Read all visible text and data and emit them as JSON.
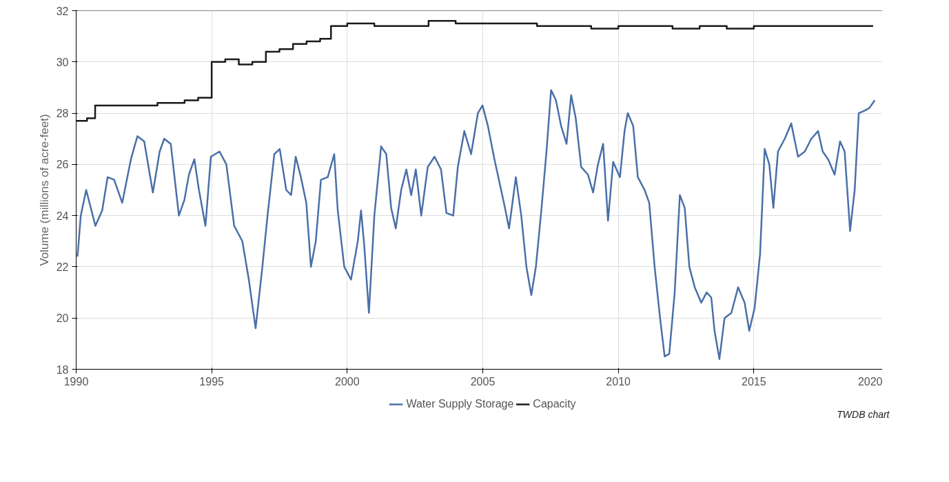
{
  "chart_data": {
    "type": "line",
    "ylabel": "Volume (millions of acre-feet)",
    "xlim": [
      1990,
      2020
    ],
    "xticks": [
      1990,
      1995,
      2000,
      2005,
      2010,
      2015,
      2020
    ],
    "ylim": [
      18,
      32
    ],
    "yticks": [
      18,
      20,
      22,
      24,
      26,
      28,
      30,
      32
    ],
    "grid": true,
    "legend": "bottom",
    "line_style": "solid",
    "marker": "none",
    "annotations": [
      "TWDB chart"
    ],
    "series": [
      {
        "name": "Water Supply Storage",
        "color": "#4a6fa8",
        "type": "line",
        "x": [
          1990.05,
          1990.17,
          1990.37,
          1990.54,
          1990.71,
          1990.96,
          1991.16,
          1991.4,
          1991.7,
          1992.02,
          1992.26,
          1992.51,
          1992.83,
          1993.08,
          1993.25,
          1993.49,
          1993.79,
          1993.99,
          1994.16,
          1994.36,
          1994.53,
          1994.77,
          1994.97,
          1995.29,
          1995.54,
          1995.83,
          1996.13,
          1996.37,
          1996.62,
          1996.87,
          1997.06,
          1997.31,
          1997.51,
          1997.75,
          1997.93,
          1998.1,
          1998.29,
          1998.49,
          1998.66,
          1998.84,
          1999.03,
          1999.28,
          1999.52,
          1999.65,
          1999.89,
          2000.14,
          2000.39,
          2000.51,
          2000.63,
          2000.8,
          2001.0,
          2001.25,
          2001.44,
          2001.62,
          2001.79,
          2001.99,
          2002.18,
          2002.36,
          2002.53,
          2002.73,
          2002.97,
          2003.22,
          2003.46,
          2003.66,
          2003.91,
          2004.08,
          2004.32,
          2004.57,
          2004.82,
          2004.99,
          2005.19,
          2005.43,
          2005.8,
          2005.97,
          2006.22,
          2006.42,
          2006.61,
          2006.79,
          2006.96,
          2007.16,
          2007.35,
          2007.52,
          2007.7,
          2007.89,
          2008.09,
          2008.26,
          2008.43,
          2008.63,
          2008.88,
          2009.07,
          2009.25,
          2009.44,
          2009.62,
          2009.81,
          2010.06,
          2010.23,
          2010.35,
          2010.55,
          2010.72,
          2010.97,
          2011.14,
          2011.34,
          2011.54,
          2011.71,
          2011.88,
          2012.08,
          2012.27,
          2012.45,
          2012.62,
          2012.82,
          2013.06,
          2013.26,
          2013.43,
          2013.55,
          2013.73,
          2013.92,
          2014.17,
          2014.42,
          2014.66,
          2014.83,
          2015.03,
          2015.23,
          2015.4,
          2015.57,
          2015.72,
          2015.89,
          2016.14,
          2016.38,
          2016.63,
          2016.88,
          2017.12,
          2017.37,
          2017.54,
          2017.74,
          2017.98,
          2018.18,
          2018.35,
          2018.55,
          2018.72,
          2018.87,
          2019.09,
          2019.26,
          2019.46
        ],
        "values": [
          22.4,
          24.0,
          25.0,
          24.3,
          23.6,
          24.2,
          25.5,
          25.4,
          24.5,
          26.2,
          27.1,
          26.9,
          24.9,
          26.5,
          27.0,
          26.8,
          24.0,
          24.6,
          25.6,
          26.2,
          25.0,
          23.6,
          26.3,
          26.5,
          26.0,
          23.6,
          23.0,
          21.5,
          19.6,
          22.0,
          24.0,
          26.4,
          26.6,
          25.0,
          24.8,
          26.3,
          25.5,
          24.5,
          22.0,
          23.0,
          25.4,
          25.5,
          26.4,
          24.2,
          22.0,
          21.5,
          23.0,
          24.2,
          22.8,
          20.2,
          24.0,
          26.7,
          26.4,
          24.3,
          23.5,
          25.0,
          25.8,
          24.8,
          25.8,
          24.0,
          25.9,
          26.3,
          25.8,
          24.1,
          24.0,
          25.9,
          27.3,
          26.4,
          28.0,
          28.3,
          27.5,
          26.2,
          24.4,
          23.5,
          25.5,
          24.0,
          22.0,
          20.9,
          22.0,
          24.2,
          26.5,
          28.9,
          28.5,
          27.5,
          26.8,
          28.7,
          27.8,
          25.9,
          25.6,
          24.9,
          26.0,
          26.8,
          23.8,
          26.1,
          25.5,
          27.3,
          28.0,
          27.5,
          25.5,
          25.0,
          24.5,
          22.0,
          20.0,
          18.5,
          18.6,
          21.0,
          24.8,
          24.3,
          22.0,
          21.2,
          20.6,
          21.0,
          20.8,
          19.5,
          18.4,
          20.0,
          20.2,
          21.2,
          20.6,
          19.5,
          20.4,
          22.5,
          26.6,
          26.0,
          24.3,
          26.5,
          27.0,
          27.6,
          26.3,
          26.5,
          27.0,
          27.3,
          26.5,
          26.2,
          25.6,
          26.9,
          26.5,
          23.4,
          25.0,
          28.0,
          28.1,
          28.2,
          28.5
        ]
      },
      {
        "name": "Capacity",
        "color": "#1a1a1a",
        "type": "step",
        "x": [
          1990.0,
          1990.4,
          1990.7,
          1992.0,
          1993.0,
          1994.0,
          1994.5,
          1995.0,
          1995.5,
          1996.0,
          1996.5,
          1997.0,
          1997.5,
          1998.0,
          1998.5,
          1999.0,
          1999.4,
          2000.0,
          2001.0,
          2002.0,
          2003.0,
          2004.0,
          2005.0,
          2006.0,
          2007.0,
          2008.0,
          2009.0,
          2010.0,
          2011.0,
          2012.0,
          2013.0,
          2014.0,
          2015.0,
          2016.0,
          2017.0,
          2018.0,
          2019.0,
          2019.4
        ],
        "values": [
          27.7,
          27.8,
          28.3,
          28.3,
          28.4,
          28.5,
          28.6,
          30.0,
          30.1,
          29.9,
          30.0,
          30.4,
          30.5,
          30.7,
          30.8,
          30.9,
          31.4,
          31.5,
          31.4,
          31.4,
          31.6,
          31.5,
          31.5,
          31.5,
          31.4,
          31.4,
          31.3,
          31.4,
          31.4,
          31.3,
          31.4,
          31.3,
          31.4,
          31.4,
          31.4,
          31.4,
          31.4,
          31.4
        ]
      }
    ]
  }
}
